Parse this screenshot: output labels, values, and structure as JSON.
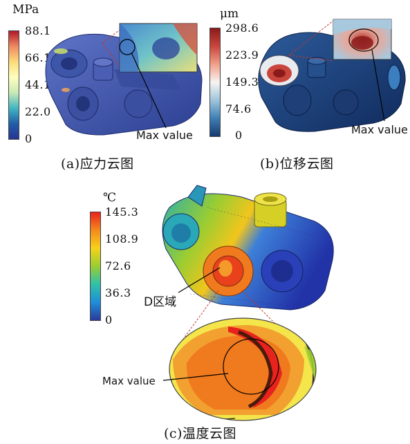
{
  "panel_a": {
    "unit": "MPa",
    "ticks": [
      "88.1",
      "66.1",
      "44.1",
      "22.0",
      "0"
    ],
    "annotation": "Max value",
    "caption": "(a)应力云图",
    "colormap": [
      "#b2182b",
      "#ef8a62",
      "#fddb7a",
      "#ffffbf",
      "#c7e9b4",
      "#41b6c4",
      "#225ea8",
      "#253494"
    ]
  },
  "panel_b": {
    "unit": "μm",
    "ticks": [
      "298.6",
      "223.9",
      "149.3",
      "74.6",
      "0"
    ],
    "annotation": "Max value",
    "caption": "(b)位移云图",
    "colormap": [
      "#8b1a1a",
      "#c9463d",
      "#f0a08a",
      "#f7f4f2",
      "#9ec5dc",
      "#3f7fb5",
      "#163a70"
    ]
  },
  "panel_c": {
    "unit": "℃",
    "ticks": [
      "145.3",
      "108.9",
      "72.6",
      "36.3",
      "0"
    ],
    "zone_label": "D区域",
    "annotation": "Max value",
    "caption": "(c)温度云图",
    "colormap": [
      "#e8221c",
      "#f48a1e",
      "#f5d21c",
      "#9acd32",
      "#30c0a8",
      "#1f8fd8",
      "#2a3a9a"
    ]
  }
}
